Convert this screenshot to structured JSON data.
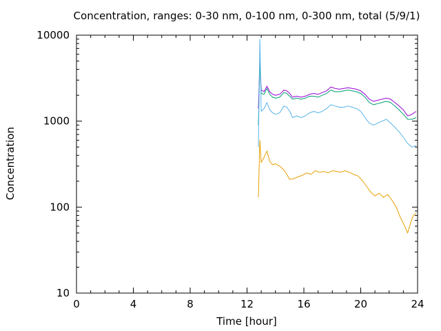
{
  "chart_data": {
    "type": "line",
    "title": "Concentration, ranges: 0-30 nm, 0-100 nm, 0-300 nm, total (5/9/1)",
    "xlabel": "Time [hour]",
    "ylabel": "Concentration",
    "xlim": [
      0,
      24
    ],
    "ylim": [
      10,
      10000
    ],
    "yscale": "log",
    "grid": false,
    "x_ticks": [
      0,
      4,
      8,
      12,
      16,
      20,
      24
    ],
    "x_tick_labels": [
      "0",
      "4",
      "8",
      "12",
      "16",
      "20",
      "24"
    ],
    "y_ticks": [
      10,
      100,
      1000,
      10000
    ],
    "y_tick_labels": [
      "10",
      "100",
      "1000",
      "10000"
    ],
    "series": [
      {
        "color": "#9400d3",
        "points": [
          [
            12.8,
            1400
          ],
          [
            12.9,
            4800
          ],
          [
            13.0,
            2300
          ],
          [
            13.2,
            2200
          ],
          [
            13.4,
            2550
          ],
          [
            13.6,
            2200
          ],
          [
            13.8,
            2050
          ],
          [
            14.0,
            2000
          ],
          [
            14.3,
            2050
          ],
          [
            14.6,
            2300
          ],
          [
            14.8,
            2250
          ],
          [
            15.0,
            2100
          ],
          [
            15.2,
            1900
          ],
          [
            15.5,
            1950
          ],
          [
            15.8,
            1900
          ],
          [
            16.1,
            1950
          ],
          [
            16.4,
            2050
          ],
          [
            16.7,
            2100
          ],
          [
            17.0,
            2050
          ],
          [
            17.3,
            2150
          ],
          [
            17.6,
            2250
          ],
          [
            17.9,
            2500
          ],
          [
            18.2,
            2400
          ],
          [
            18.5,
            2350
          ],
          [
            18.8,
            2400
          ],
          [
            19.1,
            2450
          ],
          [
            19.4,
            2400
          ],
          [
            19.7,
            2350
          ],
          [
            20.0,
            2250
          ],
          [
            20.3,
            2050
          ],
          [
            20.6,
            1800
          ],
          [
            20.9,
            1700
          ],
          [
            21.2,
            1750
          ],
          [
            21.5,
            1800
          ],
          [
            21.8,
            1850
          ],
          [
            22.1,
            1800
          ],
          [
            22.4,
            1650
          ],
          [
            22.7,
            1500
          ],
          [
            23.0,
            1350
          ],
          [
            23.3,
            1150
          ],
          [
            23.6,
            1200
          ],
          [
            23.9,
            1300
          ]
        ]
      },
      {
        "color": "#009e73",
        "points": [
          [
            12.8,
            900
          ],
          [
            12.9,
            4500
          ],
          [
            13.0,
            2100
          ],
          [
            13.2,
            2050
          ],
          [
            13.4,
            2400
          ],
          [
            13.6,
            2050
          ],
          [
            13.8,
            1900
          ],
          [
            14.0,
            1850
          ],
          [
            14.3,
            1900
          ],
          [
            14.6,
            2150
          ],
          [
            14.8,
            2100
          ],
          [
            15.0,
            1950
          ],
          [
            15.2,
            1800
          ],
          [
            15.5,
            1850
          ],
          [
            15.8,
            1800
          ],
          [
            16.1,
            1850
          ],
          [
            16.4,
            1950
          ],
          [
            16.7,
            1950
          ],
          [
            17.0,
            1900
          ],
          [
            17.3,
            2000
          ],
          [
            17.6,
            2100
          ],
          [
            17.9,
            2300
          ],
          [
            18.2,
            2200
          ],
          [
            18.5,
            2200
          ],
          [
            18.8,
            2250
          ],
          [
            19.1,
            2300
          ],
          [
            19.4,
            2250
          ],
          [
            19.7,
            2200
          ],
          [
            20.0,
            2100
          ],
          [
            20.3,
            1900
          ],
          [
            20.6,
            1650
          ],
          [
            20.9,
            1550
          ],
          [
            21.2,
            1600
          ],
          [
            21.5,
            1650
          ],
          [
            21.8,
            1700
          ],
          [
            22.1,
            1650
          ],
          [
            22.4,
            1500
          ],
          [
            22.7,
            1350
          ],
          [
            23.0,
            1200
          ],
          [
            23.3,
            1050
          ],
          [
            23.6,
            1050
          ],
          [
            23.9,
            1100
          ]
        ]
      },
      {
        "color": "#56b4e9",
        "points": [
          [
            12.8,
            500
          ],
          [
            12.9,
            9000
          ],
          [
            13.0,
            1300
          ],
          [
            13.2,
            1400
          ],
          [
            13.4,
            1650
          ],
          [
            13.6,
            1350
          ],
          [
            13.8,
            1250
          ],
          [
            14.0,
            1200
          ],
          [
            14.3,
            1250
          ],
          [
            14.6,
            1500
          ],
          [
            14.8,
            1450
          ],
          [
            15.0,
            1300
          ],
          [
            15.2,
            1100
          ],
          [
            15.5,
            1150
          ],
          [
            15.8,
            1100
          ],
          [
            16.1,
            1150
          ],
          [
            16.4,
            1250
          ],
          [
            16.7,
            1300
          ],
          [
            17.0,
            1250
          ],
          [
            17.3,
            1300
          ],
          [
            17.6,
            1400
          ],
          [
            17.9,
            1550
          ],
          [
            18.2,
            1500
          ],
          [
            18.5,
            1450
          ],
          [
            18.8,
            1450
          ],
          [
            19.1,
            1500
          ],
          [
            19.4,
            1450
          ],
          [
            19.7,
            1400
          ],
          [
            20.0,
            1300
          ],
          [
            20.3,
            1100
          ],
          [
            20.6,
            950
          ],
          [
            20.9,
            900
          ],
          [
            21.2,
            950
          ],
          [
            21.5,
            1000
          ],
          [
            21.8,
            1050
          ],
          [
            22.1,
            950
          ],
          [
            22.4,
            850
          ],
          [
            22.7,
            750
          ],
          [
            23.0,
            650
          ],
          [
            23.3,
            550
          ],
          [
            23.6,
            500
          ],
          [
            23.9,
            520
          ]
        ]
      },
      {
        "color": "#e69f00",
        "points": [
          [
            12.8,
            130
          ],
          [
            12.9,
            600
          ],
          [
            13.0,
            330
          ],
          [
            13.2,
            380
          ],
          [
            13.4,
            450
          ],
          [
            13.6,
            340
          ],
          [
            13.8,
            310
          ],
          [
            14.0,
            320
          ],
          [
            14.3,
            300
          ],
          [
            14.6,
            270
          ],
          [
            14.8,
            240
          ],
          [
            15.0,
            210
          ],
          [
            15.3,
            215
          ],
          [
            15.6,
            225
          ],
          [
            15.9,
            235
          ],
          [
            16.2,
            250
          ],
          [
            16.5,
            240
          ],
          [
            16.8,
            265
          ],
          [
            17.1,
            255
          ],
          [
            17.4,
            260
          ],
          [
            17.7,
            250
          ],
          [
            18.0,
            265
          ],
          [
            18.3,
            260
          ],
          [
            18.6,
            255
          ],
          [
            18.9,
            265
          ],
          [
            19.2,
            255
          ],
          [
            19.5,
            240
          ],
          [
            19.8,
            230
          ],
          [
            20.1,
            205
          ],
          [
            20.4,
            175
          ],
          [
            20.7,
            150
          ],
          [
            21.0,
            135
          ],
          [
            21.3,
            145
          ],
          [
            21.6,
            130
          ],
          [
            21.9,
            140
          ],
          [
            22.2,
            120
          ],
          [
            22.5,
            100
          ],
          [
            22.8,
            75
          ],
          [
            23.1,
            60
          ],
          [
            23.3,
            50
          ],
          [
            23.5,
            65
          ],
          [
            23.7,
            80
          ],
          [
            23.9,
            85
          ]
        ]
      }
    ]
  }
}
